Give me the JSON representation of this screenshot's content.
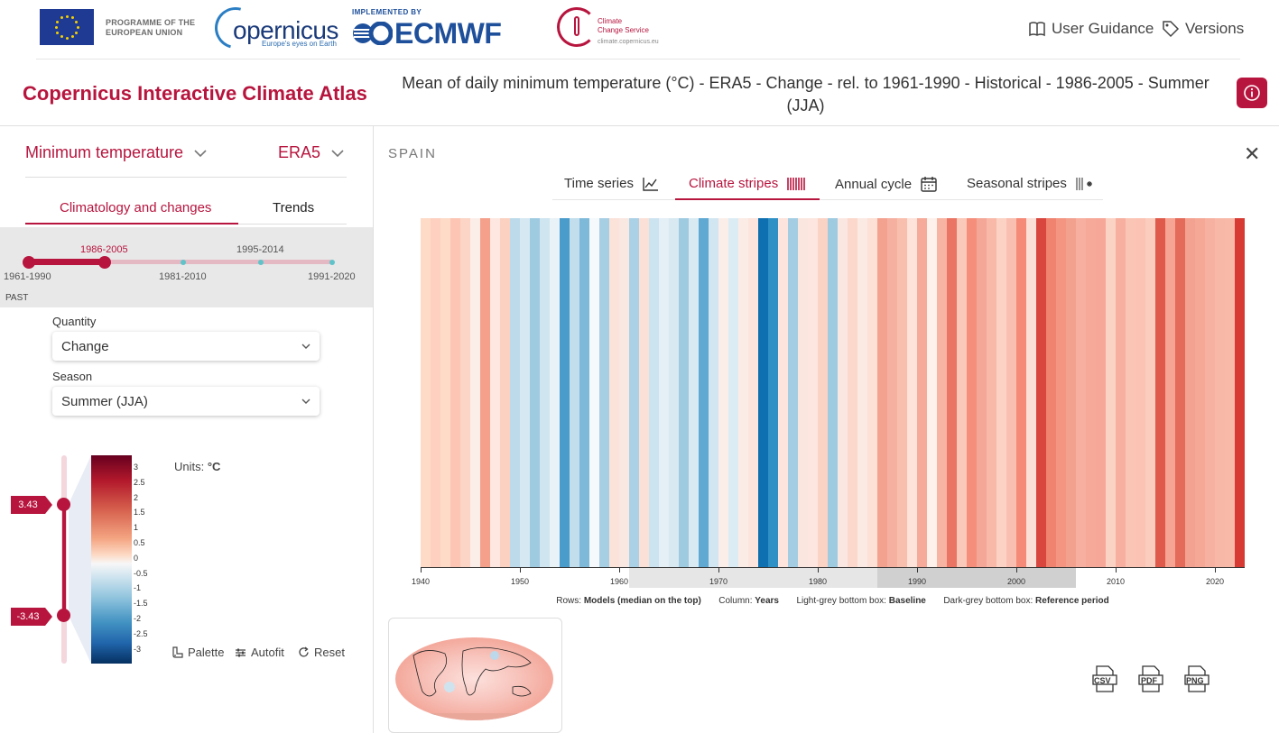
{
  "header": {
    "eu_text_1": "PROGRAMME OF THE",
    "eu_text_2": "EUROPEAN UNION",
    "copernicus_name": "opernicus",
    "copernicus_tagline": "Europe's eyes on Earth",
    "implemented_by": "IMPLEMENTED BY",
    "ecmwf": "ECMWF",
    "c3s_line1": "Climate",
    "c3s_line2": "Change Service",
    "c3s_url": "climate.copernicus.eu",
    "user_guidance": "User Guidance",
    "versions": "Versions"
  },
  "app_title": "Copernicus Interactive Climate Atlas",
  "page_heading": "Mean of daily minimum temperature (°C) - ERA5 - Change - rel. to 1961-1990 - Historical - 1986-2005 - Summer (JJA)",
  "left": {
    "variable": "Minimum temperature",
    "dataset": "ERA5",
    "tabs": [
      "Climatology and changes",
      "Trends"
    ],
    "timeline": {
      "bottom_labels": [
        "1961-1990",
        "1981-2010",
        "1991-2020"
      ],
      "top_labels": [
        "1986-2005",
        "1995-2014"
      ],
      "past_label": "PAST",
      "selected_fraction": 0.25
    },
    "quantity_label": "Quantity",
    "quantity_value": "Change",
    "season_label": "Season",
    "season_value": "Summer (JJA)",
    "legend": {
      "max_tag": "3.43",
      "min_tag": "-3.43",
      "ticks": [
        "3",
        "2.5",
        "2",
        "1.5",
        "1",
        "0.5",
        "0",
        "-0.5",
        "-1",
        "-1.5",
        "-2",
        "-2.5",
        "-3"
      ],
      "units_label": "Units:",
      "units_value": "°C"
    },
    "tools": [
      "Palette",
      "Autofit",
      "Reset"
    ]
  },
  "right": {
    "country": "SPAIN",
    "tabs": [
      {
        "label": "Time series",
        "icon": "line-chart-icon"
      },
      {
        "label": "Climate stripes",
        "icon": "stripes-icon"
      },
      {
        "label": "Annual cycle",
        "icon": "calendar-icon"
      },
      {
        "label": "Seasonal stripes",
        "icon": "seasonal-stripes-icon"
      }
    ],
    "active_tab": "Climate stripes",
    "x_labels": [
      "1940",
      "1950",
      "1960",
      "1970",
      "1980",
      "1990",
      "2000",
      "2010",
      "2020"
    ],
    "caption": {
      "rows_label": "Rows:",
      "rows_value": "Models (median on the top)",
      "column_label": "Column:",
      "column_value": "Years",
      "light_label": "Light-grey bottom box:",
      "light_value": "Baseline",
      "dark_label": "Dark-grey bottom box:",
      "dark_value": "Reference period"
    },
    "downloads": [
      "CSV",
      "PDF",
      "PNG"
    ]
  },
  "colors": {
    "brand": "#b7153e",
    "baseline_box": "#e6e6e6",
    "reference_box": "#d0d0d0"
  },
  "chart_data": {
    "type": "heatmap",
    "x_start": 1940,
    "x_end": 2022,
    "baseline_period": [
      1961,
      1990
    ],
    "reference_period": [
      1986,
      2005
    ],
    "colors": [
      "#fddbc7",
      "#fdd0c0",
      "#fddbc7",
      "#fcc5b4",
      "#fcd5c6",
      "#fbeee9",
      "#f5a08b",
      "#fde7e0",
      "#fbd1c2",
      "#bddaea",
      "#d6e8f2",
      "#9fcbe1",
      "#cfe5f0",
      "#e9f2f7",
      "#4a9ccb",
      "#c2ddec",
      "#7fb9da",
      "#f6f9fb",
      "#a7cfe4",
      "#fbe3da",
      "#f9e7e2",
      "#aad1e6",
      "#fbe0d7",
      "#cce3f0",
      "#e4eff6",
      "#d8e9f2",
      "#9fcbe1",
      "#d9eaf3",
      "#5fa9d3",
      "#d2e6f1",
      "#fbeee9",
      "#dcecf4",
      "#fcece6",
      "#fde4dc",
      "#0e70b0",
      "#2f90c6",
      "#fde4dc",
      "#a4cde3",
      "#fbe6df",
      "#fce6df",
      "#fbd3c5",
      "#9fcbe1",
      "#fbe7e1",
      "#fbd8cb",
      "#fbeae4",
      "#fde0d6",
      "#f4a290",
      "#f6b0a0",
      "#f9bfae",
      "#fde3da",
      "#f6aa99",
      "#fef1ec",
      "#f8b4a3",
      "#eb7564",
      "#fbc9b9",
      "#f58f7c",
      "#f4a797",
      "#f8b9a8",
      "#fbd2c4",
      "#f9bfb0",
      "#f58a78",
      "#fbe0d8",
      "#d8463d",
      "#ef8370",
      "#f49582",
      "#f3a18f",
      "#f7af9f",
      "#f7a999",
      "#f6a797",
      "#fbd3c5",
      "#f7b0a0",
      "#fbc5b6",
      "#fbc3b3",
      "#fbcdbf",
      "#e05a4b",
      "#f6a493",
      "#e46a59",
      "#f3a291",
      "#f6a897",
      "#f7b1a1",
      "#f8b8a8",
      "#f8b9a9",
      "#d63a32"
    ]
  }
}
